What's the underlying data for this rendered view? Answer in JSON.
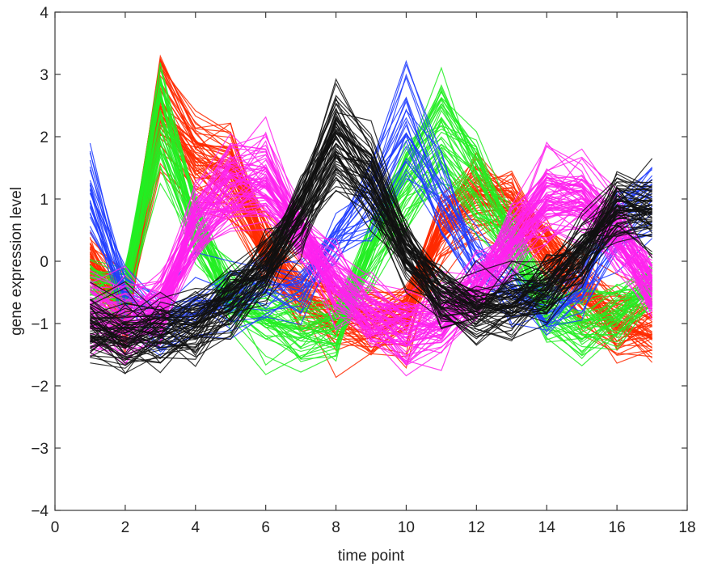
{
  "chart_data": {
    "type": "line",
    "title": "",
    "xlabel": "time point",
    "ylabel": "gene expression level",
    "xlim": [
      0,
      18
    ],
    "ylim": [
      -4,
      4
    ],
    "x_ticks": [
      "0",
      "2",
      "4",
      "6",
      "8",
      "10",
      "12",
      "14",
      "16",
      "18"
    ],
    "y_ticks": [
      "4",
      "3",
      "2",
      "1",
      "0",
      "−1",
      "−2",
      "−3",
      "−4"
    ],
    "grid": false,
    "legend": "none",
    "x": [
      1,
      2,
      3,
      4,
      5,
      6,
      7,
      8,
      9,
      10,
      11,
      12,
      13,
      14,
      15,
      16,
      17
    ],
    "cluster_colors": {
      "red": "#ff2a00",
      "green": "#22ee22",
      "blue": "#1e3cff",
      "magenta": "#ff22ee",
      "black": "#111111"
    },
    "clusters": [
      {
        "color": "red",
        "line_count": 60,
        "profile": [
          0.0,
          -0.8,
          2.4,
          1.6,
          1.3,
          0.2,
          -0.5,
          -0.8,
          -1.0,
          -0.8,
          0.5,
          1.0,
          0.8,
          0.2,
          -0.5,
          -1.0,
          -1.0
        ]
      },
      {
        "color": "green",
        "line_count": 45,
        "profile": [
          -0.4,
          -0.5,
          2.2,
          0.5,
          -0.5,
          -0.9,
          -1.1,
          -1.0,
          0.2,
          1.2,
          2.0,
          1.2,
          0.3,
          -0.7,
          -1.0,
          -0.8,
          -0.4
        ]
      },
      {
        "color": "blue",
        "line_count": 25,
        "profile": [
          1.2,
          -0.6,
          -1.0,
          -0.9,
          -0.7,
          -0.6,
          -0.4,
          0.4,
          1.0,
          2.2,
          1.0,
          0.0,
          -0.6,
          -0.9,
          -0.4,
          0.6,
          1.0
        ]
      },
      {
        "color": "magenta",
        "line_count": 70,
        "profile": [
          -0.8,
          -1.0,
          -0.8,
          0.6,
          1.2,
          1.3,
          0.4,
          -0.4,
          -0.9,
          -1.1,
          -1.0,
          -0.5,
          0.3,
          1.0,
          1.0,
          0.4,
          -0.4
        ]
      },
      {
        "color": "black",
        "line_count": 65,
        "profile": [
          -1.1,
          -1.2,
          -1.1,
          -1.0,
          -0.6,
          -0.1,
          0.7,
          1.9,
          1.3,
          0.2,
          -0.6,
          -0.8,
          -0.7,
          -0.4,
          0.1,
          0.8,
          0.8
        ]
      }
    ]
  }
}
